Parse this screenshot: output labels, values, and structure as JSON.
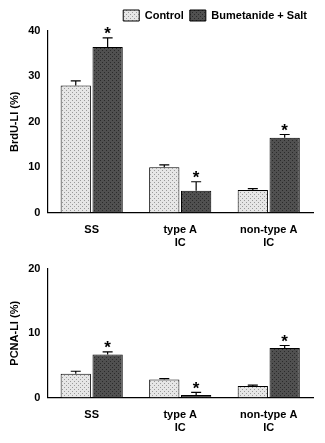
{
  "chart_data": [
    {
      "type": "bar",
      "categories": [
        "SS",
        "type A\nIC",
        "non-type A\nIC"
      ],
      "y_label": "BrdU-LI (%)",
      "ylim": [
        0,
        40
      ],
      "yticks": [
        0,
        10,
        20,
        30,
        40
      ],
      "grid": false,
      "legend": "top right",
      "series": [
        {
          "name": "Control",
          "color": "#e6e6e6",
          "values": [
            28,
            10,
            5
          ],
          "errors": [
            1,
            0.5,
            0.3
          ]
        },
        {
          "name": "Bumetanide + Salt",
          "color": "#505050",
          "values": [
            36.5,
            4.8,
            16.5
          ],
          "errors": [
            2,
            2,
            0.7
          ]
        }
      ],
      "annotations": [
        {
          "text": "*",
          "category": "SS",
          "series": "Bumetanide + Salt"
        },
        {
          "text": "*",
          "category": "type A\nIC",
          "series": "Bumetanide + Salt"
        },
        {
          "text": "*",
          "category": "non-type A\nIC",
          "series": "Bumetanide + Salt"
        }
      ]
    },
    {
      "type": "bar",
      "categories": [
        "SS",
        "type A\nIC",
        "non-type A\nIC"
      ],
      "y_label": "PCNA-LI (%)",
      "ylim": [
        0,
        20
      ],
      "yticks": [
        0,
        10,
        20
      ],
      "grid": false,
      "series": [
        {
          "name": "Control",
          "color": "#e6e6e6",
          "values": [
            3.7,
            2.8,
            1.8
          ],
          "errors": [
            0.4,
            0.15,
            0.15
          ]
        },
        {
          "name": "Bumetanide + Salt",
          "color": "#505050",
          "values": [
            6.7,
            0.4,
            7.7
          ],
          "errors": [
            0.4,
            0.4,
            0.4
          ]
        }
      ],
      "annotations": [
        {
          "text": "*",
          "category": "SS",
          "series": "Bumetanide + Salt"
        },
        {
          "text": "*",
          "category": "type A\nIC",
          "series": "Bumetanide + Salt"
        },
        {
          "text": "*",
          "category": "non-type A\nIC",
          "series": "Bumetanide + Salt"
        }
      ]
    }
  ]
}
